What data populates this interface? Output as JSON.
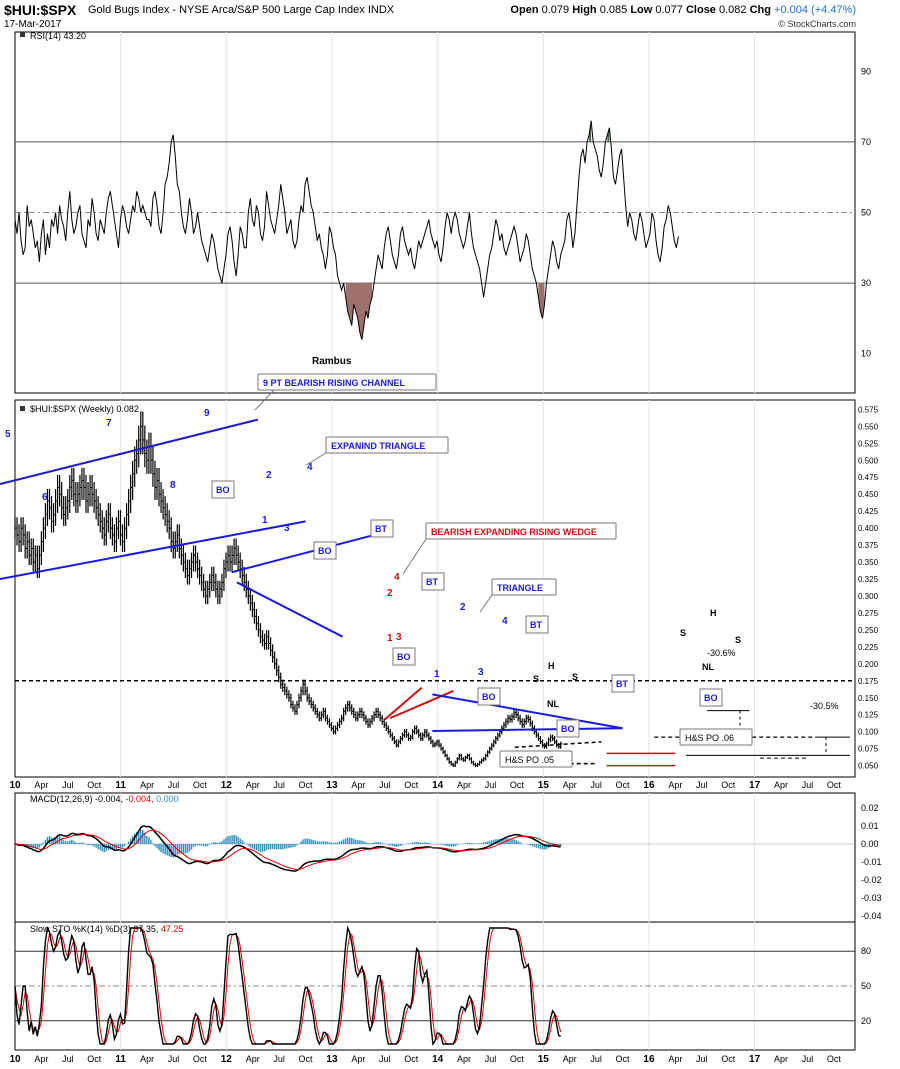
{
  "header": {
    "symbol": "$HUI:$SPX",
    "description": "Gold Bugs Index - NYSE Arca/S&P 500 Large Cap Index INDX",
    "date": "17-Mar-2017",
    "quote": {
      "open_label": "Open",
      "open": "0.079",
      "high_label": "High",
      "high": "0.085",
      "low_label": "Low",
      "low": "0.077",
      "close_label": "Close",
      "close": "0.082",
      "chg_label": "Chg",
      "chg": "+0.004 (+4.47%)",
      "chg_color": "#1f6fd1"
    },
    "copyright": "© StockCharts.com"
  },
  "chart_data": [
    {
      "type": "line",
      "panel": "rsi",
      "legend": "RSI(14) 43.20",
      "ylim": [
        0,
        100
      ],
      "yticks": [
        10,
        30,
        50,
        70,
        90
      ],
      "reference_lines": [
        30,
        50,
        70
      ],
      "annotation": "Rambus",
      "x_start": 2010.0,
      "x_step": 0.0192,
      "values": [
        48,
        44,
        50,
        42,
        38,
        40,
        52,
        46,
        48,
        44,
        40,
        42,
        36,
        44,
        48,
        38,
        44,
        40,
        48,
        46,
        50,
        44,
        52,
        48,
        46,
        42,
        50,
        56,
        48,
        44,
        46,
        50,
        52,
        44,
        42,
        40,
        48,
        46,
        54,
        50,
        44,
        42,
        48,
        46,
        44,
        50,
        54,
        56,
        52,
        48,
        44,
        40,
        48,
        52,
        50,
        46,
        44,
        48,
        52,
        50,
        56,
        54,
        50,
        52,
        50,
        48,
        48,
        46,
        54,
        56,
        52,
        46,
        44,
        50,
        58,
        60,
        64,
        70,
        72,
        66,
        58,
        56,
        50,
        46,
        44,
        48,
        54,
        50,
        44,
        46,
        50,
        46,
        42,
        40,
        38,
        36,
        40,
        44,
        42,
        38,
        34,
        32,
        30,
        34,
        38,
        44,
        46,
        42,
        36,
        32,
        38,
        46,
        44,
        40,
        40,
        50,
        54,
        48,
        46,
        52,
        50,
        44,
        42,
        46,
        56,
        52,
        48,
        46,
        44,
        48,
        52,
        58,
        54,
        50,
        44,
        46,
        48,
        42,
        40,
        42,
        48,
        52,
        50,
        58,
        60,
        56,
        52,
        50,
        46,
        42,
        44,
        40,
        38,
        34,
        38,
        46,
        44,
        40,
        38,
        32,
        30,
        28,
        30,
        26,
        22,
        20,
        18,
        24,
        22,
        20,
        16,
        14,
        18,
        22,
        20,
        24,
        26,
        30,
        34,
        38,
        36,
        34,
        40,
        44,
        46,
        42,
        38,
        36,
        34,
        38,
        44,
        46,
        42,
        40,
        38,
        40,
        36,
        34,
        38,
        42,
        40,
        42,
        44,
        46,
        48,
        44,
        42,
        40,
        42,
        38,
        36,
        40,
        46,
        50,
        48,
        44,
        48,
        50,
        48,
        44,
        42,
        40,
        42,
        46,
        50,
        44,
        40,
        38,
        36,
        34,
        30,
        26,
        30,
        34,
        38,
        40,
        44,
        48,
        46,
        42,
        44,
        40,
        38,
        40,
        42,
        44,
        46,
        44,
        40,
        36,
        38,
        40,
        44,
        42,
        38,
        34,
        32,
        30,
        26,
        22,
        20,
        24,
        30,
        34,
        38,
        42,
        40,
        36,
        34,
        38,
        40,
        42,
        48,
        50,
        46,
        40,
        44,
        52,
        60,
        66,
        68,
        64,
        70,
        72,
        76,
        70,
        68,
        66,
        62,
        60,
        64,
        70,
        72,
        74,
        68,
        60,
        58,
        62,
        66,
        68,
        60,
        52,
        46,
        50,
        48,
        44,
        42,
        46,
        50,
        48,
        44,
        40,
        42,
        44,
        50,
        48,
        42,
        38,
        36,
        40,
        46,
        48,
        52,
        50,
        46,
        42,
        40,
        43.2
      ]
    },
    {
      "type": "line",
      "panel": "price",
      "legend": "$HUI:$SPX (Weekly) 0.082",
      "ylim": [
        0.045,
        0.58
      ],
      "yticks": [
        0.05,
        0.075,
        0.1,
        0.125,
        0.15,
        0.175,
        0.2,
        0.225,
        0.25,
        0.275,
        0.3,
        0.325,
        0.35,
        0.375,
        0.4,
        0.425,
        0.45,
        0.475,
        0.5,
        0.525,
        0.55,
        0.575
      ],
      "x_axis": {
        "labels": [
          "10",
          "Apr",
          "Jul",
          "Oct",
          "11",
          "Apr",
          "Jul",
          "Oct",
          "12",
          "Apr",
          "Jul",
          "Oct",
          "13",
          "Apr",
          "Jul",
          "Oct",
          "14",
          "Apr",
          "Jul",
          "Oct",
          "15",
          "Apr",
          "Jul",
          "Oct",
          "16",
          "Apr",
          "Jul",
          "Oct",
          "17",
          "Apr",
          "Jul",
          "Oct"
        ],
        "start": 2010.0,
        "step": 0.25
      },
      "series": [
        {
          "x_start": 2010.0,
          "x_step": 0.0192,
          "values": [
            0.4,
            0.39,
            0.38,
            0.4,
            0.39,
            0.37,
            0.38,
            0.36,
            0.37,
            0.35,
            0.36,
            0.34,
            0.36,
            0.38,
            0.4,
            0.42,
            0.44,
            0.43,
            0.41,
            0.42,
            0.44,
            0.46,
            0.45,
            0.43,
            0.42,
            0.43,
            0.44,
            0.46,
            0.47,
            0.45,
            0.44,
            0.45,
            0.46,
            0.47,
            0.46,
            0.44,
            0.45,
            0.46,
            0.45,
            0.44,
            0.43,
            0.42,
            0.41,
            0.4,
            0.39,
            0.41,
            0.42,
            0.4,
            0.39,
            0.38,
            0.4,
            0.41,
            0.39,
            0.38,
            0.4,
            0.42,
            0.44,
            0.46,
            0.48,
            0.5,
            0.51,
            0.53,
            0.55,
            0.53,
            0.51,
            0.5,
            0.52,
            0.5,
            0.48,
            0.46,
            0.47,
            0.45,
            0.44,
            0.43,
            0.42,
            0.41,
            0.4,
            0.38,
            0.37,
            0.38,
            0.39,
            0.37,
            0.36,
            0.35,
            0.34,
            0.33,
            0.34,
            0.35,
            0.36,
            0.35,
            0.34,
            0.33,
            0.32,
            0.31,
            0.3,
            0.31,
            0.32,
            0.33,
            0.32,
            0.31,
            0.3,
            0.31,
            0.32,
            0.34,
            0.35,
            0.36,
            0.35,
            0.36,
            0.37,
            0.36,
            0.35,
            0.34,
            0.33,
            0.32,
            0.31,
            0.3,
            0.29,
            0.28,
            0.27,
            0.26,
            0.25,
            0.24,
            0.235,
            0.23,
            0.24,
            0.23,
            0.22,
            0.21,
            0.2,
            0.19,
            0.18,
            0.17,
            0.165,
            0.16,
            0.155,
            0.15,
            0.14,
            0.135,
            0.13,
            0.14,
            0.15,
            0.16,
            0.17,
            0.16,
            0.15,
            0.145,
            0.14,
            0.135,
            0.13,
            0.125,
            0.12,
            0.125,
            0.13,
            0.12,
            0.115,
            0.11,
            0.105,
            0.1,
            0.105,
            0.11,
            0.115,
            0.12,
            0.13,
            0.135,
            0.14,
            0.135,
            0.13,
            0.125,
            0.12,
            0.125,
            0.13,
            0.125,
            0.12,
            0.115,
            0.11,
            0.115,
            0.12,
            0.125,
            0.13,
            0.125,
            0.12,
            0.115,
            0.11,
            0.105,
            0.1,
            0.095,
            0.09,
            0.085,
            0.08,
            0.085,
            0.09,
            0.095,
            0.1,
            0.095,
            0.09,
            0.092,
            0.1,
            0.105,
            0.1,
            0.095,
            0.09,
            0.095,
            0.1,
            0.095,
            0.09,
            0.085,
            0.08,
            0.082,
            0.085,
            0.08,
            0.075,
            0.07,
            0.065,
            0.06,
            0.055,
            0.052,
            0.05,
            0.055,
            0.06,
            0.065,
            0.06,
            0.058,
            0.062,
            0.065,
            0.06,
            0.055,
            0.052,
            0.05,
            0.052,
            0.055,
            0.058,
            0.06,
            0.065,
            0.07,
            0.075,
            0.08,
            0.085,
            0.09,
            0.095,
            0.1,
            0.105,
            0.11,
            0.115,
            0.12,
            0.118,
            0.122,
            0.128,
            0.125,
            0.12,
            0.115,
            0.11,
            0.115,
            0.12,
            0.118,
            0.112,
            0.105,
            0.1,
            0.095,
            0.09,
            0.085,
            0.08,
            0.078,
            0.082,
            0.088,
            0.092,
            0.09,
            0.085,
            0.08,
            0.078,
            0.082
          ],
          "color": "#000000"
        }
      ],
      "annotations": [
        {
          "text": "9 PT BEARISH RISING CHANNEL",
          "color": "#1a1adc"
        },
        {
          "text": "EXPANIND TRIANGLE",
          "color": "#1a1adc"
        },
        {
          "text": "BEARISH EXPANDING RISING WEDGE",
          "color": "#d01010"
        },
        {
          "text": "TRIANGLE",
          "color": "#1a1adc"
        },
        {
          "text": "H&S PO .05",
          "color": "#000000"
        },
        {
          "text": "H&S PO .06",
          "color": "#000000"
        },
        {
          "text": "-30.6%",
          "color": "#000000"
        },
        {
          "text": "-30.5%",
          "color": "#000000"
        }
      ],
      "reference_lines": [
        0.175,
        0.092,
        0.065
      ]
    },
    {
      "type": "bar",
      "panel": "macd",
      "legend": {
        "label": "MACD(12,26,9)",
        "macd": "-0.004",
        "signal": "-0.004",
        "hist": "0.000"
      },
      "ylim": [
        -0.04,
        0.025
      ],
      "yticks": [
        -0.04,
        -0.03,
        -0.02,
        -0.01,
        0.0,
        0.01,
        0.02
      ],
      "series_colors": {
        "macd": "#000000",
        "signal": "#e00000",
        "hist": "#2b8fbf"
      }
    },
    {
      "type": "line",
      "panel": "sto",
      "legend": {
        "label": "Slow STO %K(14) %D(3)",
        "k": "37.35",
        "d": "47.25"
      },
      "ylim": [
        0,
        100
      ],
      "yticks": [
        20,
        50,
        80
      ],
      "reference_lines": [
        20,
        50,
        80
      ],
      "series_colors": {
        "k": "#000000",
        "d": "#e00000"
      }
    }
  ]
}
